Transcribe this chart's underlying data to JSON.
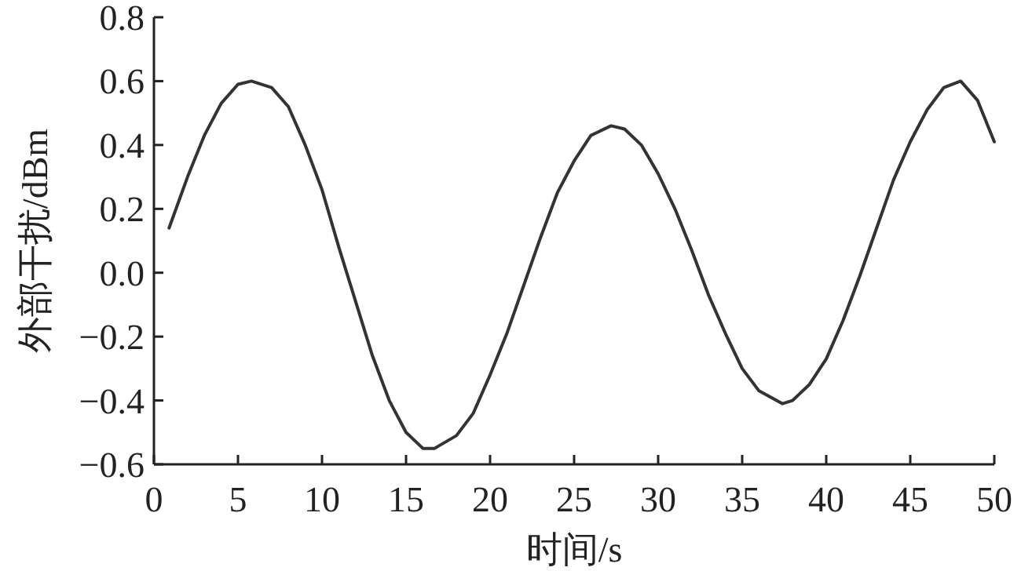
{
  "chart_data": {
    "type": "line",
    "xlabel": "时间/s",
    "ylabel": "外部干扰/dBm",
    "xlim": [
      0,
      50
    ],
    "ylim": [
      -0.6,
      0.8
    ],
    "xticks": [
      0,
      5,
      10,
      15,
      20,
      25,
      30,
      35,
      40,
      45,
      50
    ],
    "yticks": [
      -0.6,
      -0.4,
      -0.2,
      {
        "value": 0,
        "label": "0.0"
      },
      0.2,
      0.4,
      0.6,
      0.8
    ],
    "grid": false,
    "marker": "none",
    "line_style": "solid",
    "series": [
      {
        "color": "#333333",
        "x": [
          0.9,
          2,
          3,
          4,
          5,
          5.8,
          7,
          8,
          9,
          10,
          11,
          12,
          13,
          14,
          15,
          16,
          16.7,
          18,
          19,
          20,
          21,
          22,
          23,
          24,
          25,
          26,
          27.2,
          28,
          29,
          30,
          31,
          32,
          33,
          34,
          35,
          36,
          37.4,
          38,
          39,
          40,
          41,
          42,
          43,
          44,
          45,
          46,
          47,
          48,
          49,
          50
        ],
        "values": [
          0.14,
          0.3,
          0.43,
          0.53,
          0.59,
          0.6,
          0.58,
          0.52,
          0.4,
          0.26,
          0.08,
          -0.09,
          -0.26,
          -0.4,
          -0.5,
          -0.55,
          -0.55,
          -0.51,
          -0.44,
          -0.32,
          -0.19,
          -0.04,
          0.11,
          0.25,
          0.35,
          0.43,
          0.46,
          0.45,
          0.4,
          0.31,
          0.2,
          0.07,
          -0.07,
          -0.19,
          -0.3,
          -0.37,
          -0.41,
          -0.4,
          -0.35,
          -0.27,
          -0.15,
          -0.01,
          0.14,
          0.29,
          0.41,
          0.51,
          0.58,
          0.6,
          0.54,
          0.41
        ]
      }
    ]
  }
}
